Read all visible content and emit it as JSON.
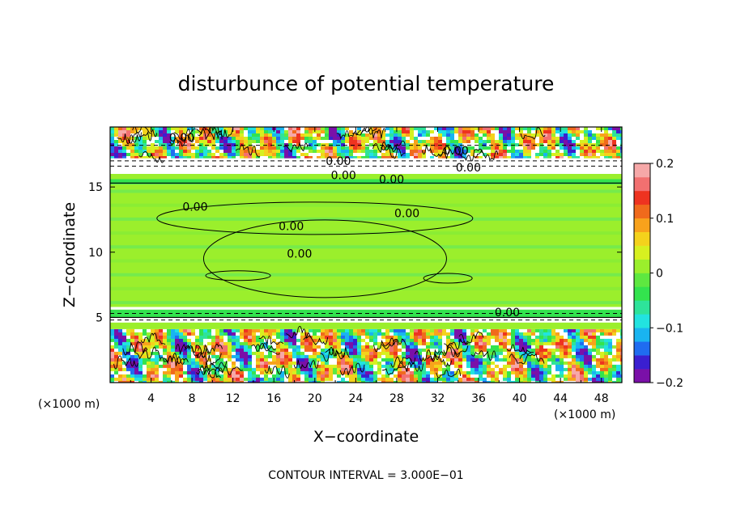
{
  "chart_data": {
    "type": "heatmap",
    "title": "disturbunce of potential temperature",
    "xlabel": "X−coordinate",
    "ylabel": "Z−coordinate",
    "x_unit": "(×1000 m)",
    "y_unit": "(×1000 m)",
    "footer": "CONTOUR INTERVAL = 3.000E−01",
    "xlim": [
      0,
      50
    ],
    "ylim": [
      0,
      19.6
    ],
    "x_ticks": [
      4,
      8,
      12,
      16,
      20,
      24,
      28,
      32,
      36,
      40,
      44,
      48
    ],
    "x_tick_labels": [
      "4",
      "8",
      "12",
      "16",
      "20",
      "24",
      "28",
      "32",
      "36",
      "40",
      "44",
      "48"
    ],
    "y_ticks": [
      5,
      10,
      15
    ],
    "y_tick_labels": [
      "5",
      "10",
      "15"
    ],
    "colorbar": {
      "range": [
        -0.2,
        0.2
      ],
      "ticks": [
        0.2,
        0.1,
        0,
        -0.1,
        -0.2
      ],
      "tick_labels": [
        "0.2",
        "0.1",
        "0",
        "−0.1",
        "−0.2"
      ],
      "colors": [
        "#7a10a8",
        "#3a1fd0",
        "#1f6cf0",
        "#19b4f0",
        "#22e3e0",
        "#2ee39a",
        "#33e34e",
        "#5ee840",
        "#9bef2c",
        "#d7f020",
        "#f4d21c",
        "#f8a21c",
        "#f06a1c",
        "#ee3320",
        "#f27070",
        "#f6a8a8"
      ]
    },
    "bands": [
      {
        "z0": 0.0,
        "z1": 4.1,
        "value": "mixed"
      },
      {
        "z0": 4.1,
        "z1": 5.0,
        "value": 0.0
      },
      {
        "z0": 5.0,
        "z1": 5.6,
        "value": -0.05
      },
      {
        "z0": 5.6,
        "z1": 15.2,
        "value": 0.0
      },
      {
        "z0": 15.2,
        "z1": 15.6,
        "value": -0.05
      },
      {
        "z0": 15.6,
        "z1": 17.2,
        "value": 0.0
      },
      {
        "z0": 17.2,
        "z1": 19.6,
        "value": "mixed"
      }
    ],
    "contour_labels": [
      {
        "x": 7.0,
        "z": 18.8,
        "text": "0.00"
      },
      {
        "x": 33.8,
        "z": 17.8,
        "text": "0.00"
      },
      {
        "x": 22.3,
        "z": 17.0,
        "text": "0.00"
      },
      {
        "x": 35.0,
        "z": 16.5,
        "text": "0.00"
      },
      {
        "x": 22.8,
        "z": 15.9,
        "text": "0.00"
      },
      {
        "x": 27.5,
        "z": 15.6,
        "text": "0.00"
      },
      {
        "x": 8.3,
        "z": 13.5,
        "text": "0.00"
      },
      {
        "x": 29.0,
        "z": 13.0,
        "text": "0.00"
      },
      {
        "x": 17.7,
        "z": 12.0,
        "text": "0.00"
      },
      {
        "x": 18.5,
        "z": 9.9,
        "text": "0.00"
      },
      {
        "x": 38.8,
        "z": 5.4,
        "text": "0.00"
      }
    ]
  }
}
